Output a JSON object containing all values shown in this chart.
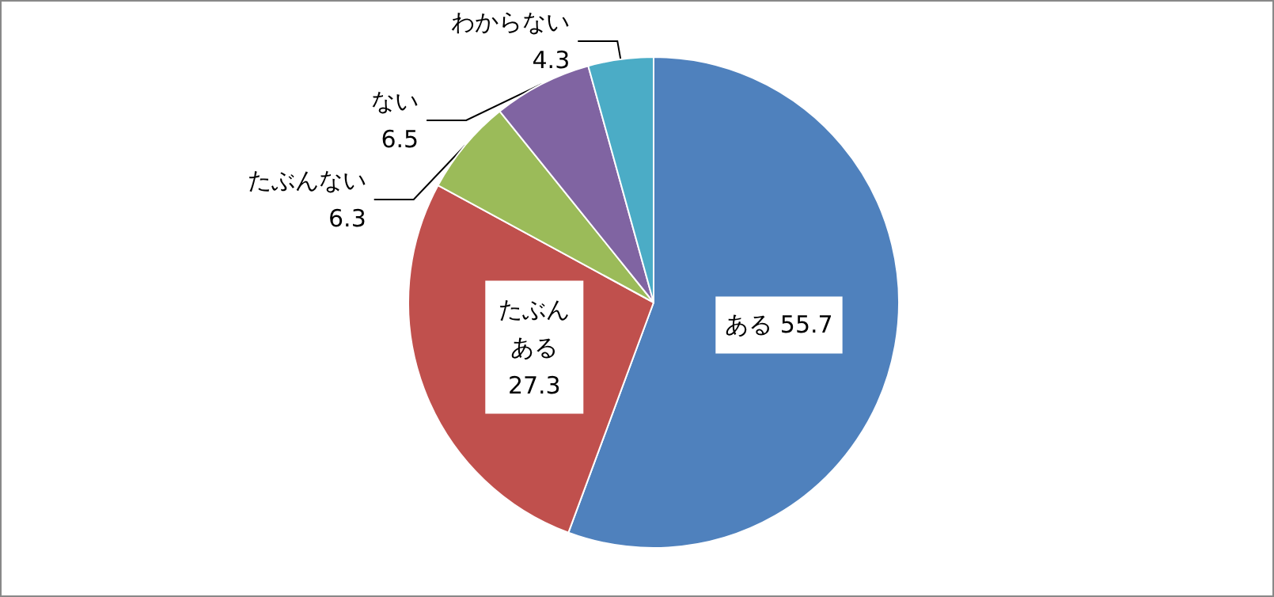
{
  "chart_data": {
    "type": "pie",
    "categories": [
      "ある",
      "たぶんある",
      "たぶんない",
      "ない",
      "わからない"
    ],
    "values": [
      55.7,
      27.3,
      6.3,
      6.5,
      4.3
    ],
    "colors": [
      "#4f81bd",
      "#c0504d",
      "#9bbb59",
      "#8064a2",
      "#4bacc6"
    ],
    "data_labels": true,
    "legend": false
  }
}
